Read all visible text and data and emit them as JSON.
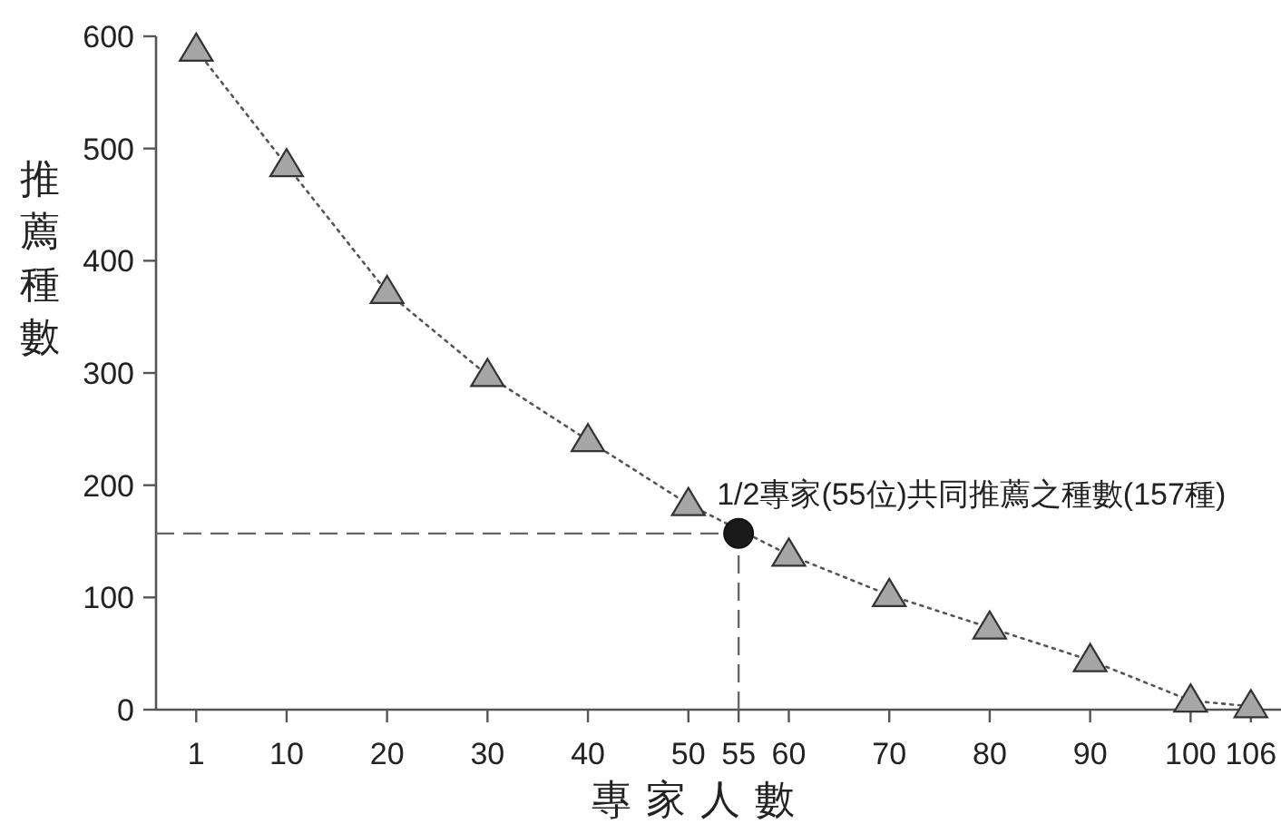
{
  "chart_data": {
    "type": "line",
    "xlabel": "專家人數",
    "ylabel": "推薦種數",
    "xlim": [
      -3,
      109
    ],
    "ylim": [
      0,
      600
    ],
    "xticks": [
      1,
      10,
      20,
      30,
      40,
      50,
      55,
      60,
      70,
      80,
      90,
      100,
      106
    ],
    "yticks": [
      0,
      100,
      200,
      300,
      400,
      500,
      600
    ],
    "grid": false,
    "series": [
      {
        "color": "#a6a6a6",
        "marker": "triangle",
        "line_style": "dotted",
        "x": [
          1,
          10,
          20,
          30,
          40,
          50,
          60,
          70,
          80,
          90,
          100,
          106
        ],
        "values": [
          588,
          485,
          372,
          298,
          240,
          183,
          138,
          102,
          73,
          44,
          8,
          3
        ]
      },
      {
        "type": "scatter",
        "color": "#1a1a1a",
        "marker": "circle",
        "x": [
          55
        ],
        "values": [
          157
        ]
      }
    ],
    "ref_lines": [
      {
        "axis": "y",
        "value": 157,
        "line_style": "dashed",
        "color": "#666666"
      },
      {
        "axis": "x",
        "value": 55,
        "line_style": "dashed",
        "color": "#666666"
      }
    ],
    "annotations": [
      {
        "text": "1/2專家(55位)共同推薦之種數(157種)",
        "x": 55,
        "y": 157
      }
    ]
  }
}
